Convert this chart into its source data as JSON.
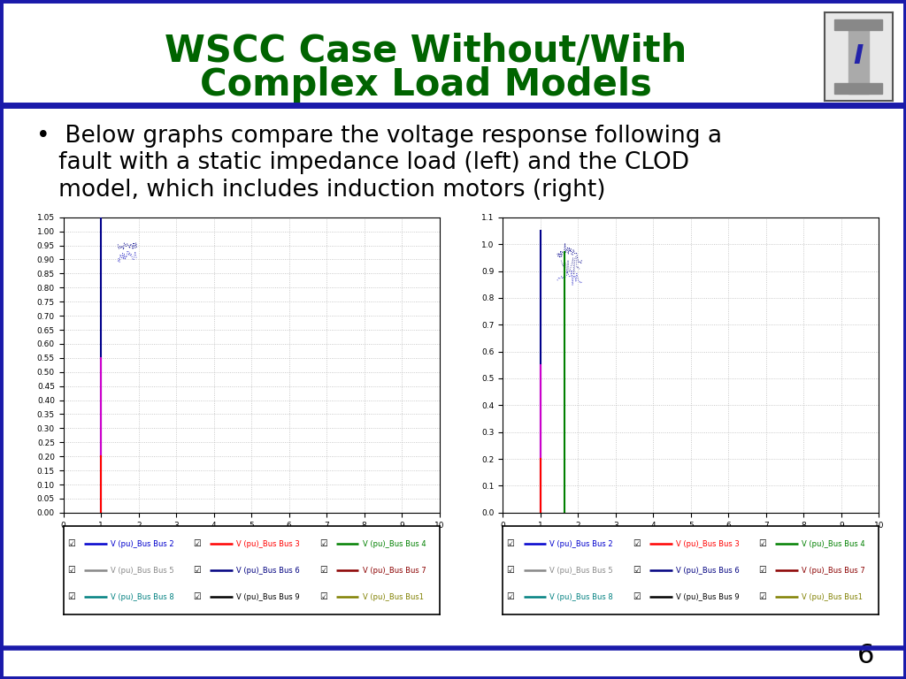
{
  "title_line1": "WSCC Case Without/With",
  "title_line2": "Complex Load Models",
  "title_color": "#006400",
  "title_fontsize": 30,
  "bullet_line1": "•  Below graphs compare the voltage response following a",
  "bullet_line2": "   fault with a static impedance load (left) and the CLOD",
  "bullet_line3": "   model, which includes induction motors (right)",
  "bullet_fontsize": 19,
  "background_color": "#ffffff",
  "border_color": "#1a1aaa",
  "page_number": "6",
  "left_ylim": [
    0,
    1.05
  ],
  "left_yticks": [
    0,
    0.05,
    0.1,
    0.15,
    0.2,
    0.25,
    0.3,
    0.35,
    0.4,
    0.45,
    0.5,
    0.55,
    0.6,
    0.65,
    0.7,
    0.75,
    0.8,
    0.85,
    0.9,
    0.95,
    1.0,
    1.05
  ],
  "xlim": [
    0,
    10
  ],
  "xticks": [
    0,
    1,
    2,
    3,
    4,
    5,
    6,
    7,
    8,
    9,
    10
  ],
  "right_ylim": [
    0,
    1.1
  ],
  "right_yticks": [
    0,
    0.1,
    0.2,
    0.3,
    0.4,
    0.5,
    0.6,
    0.7,
    0.8,
    0.9,
    1.0,
    1.1
  ],
  "legend_colors": [
    "#0000CD",
    "#FF0000",
    "#008000",
    "#888888",
    "#000080",
    "#8B0000",
    "#008080",
    "#000000",
    "#808000"
  ],
  "legend_labels": [
    "V (pu)_Bus Bus 2",
    "V (pu)_Bus Bus 3",
    "V (pu)_Bus Bus 4",
    "V (pu)_Bus Bus 5",
    "V (pu)_Bus Bus 6",
    "V (pu)_Bus Bus 7",
    "V (pu)_Bus Bus 8",
    "V (pu)_Bus Bus 9",
    "V (pu)_Bus Bus1"
  ]
}
